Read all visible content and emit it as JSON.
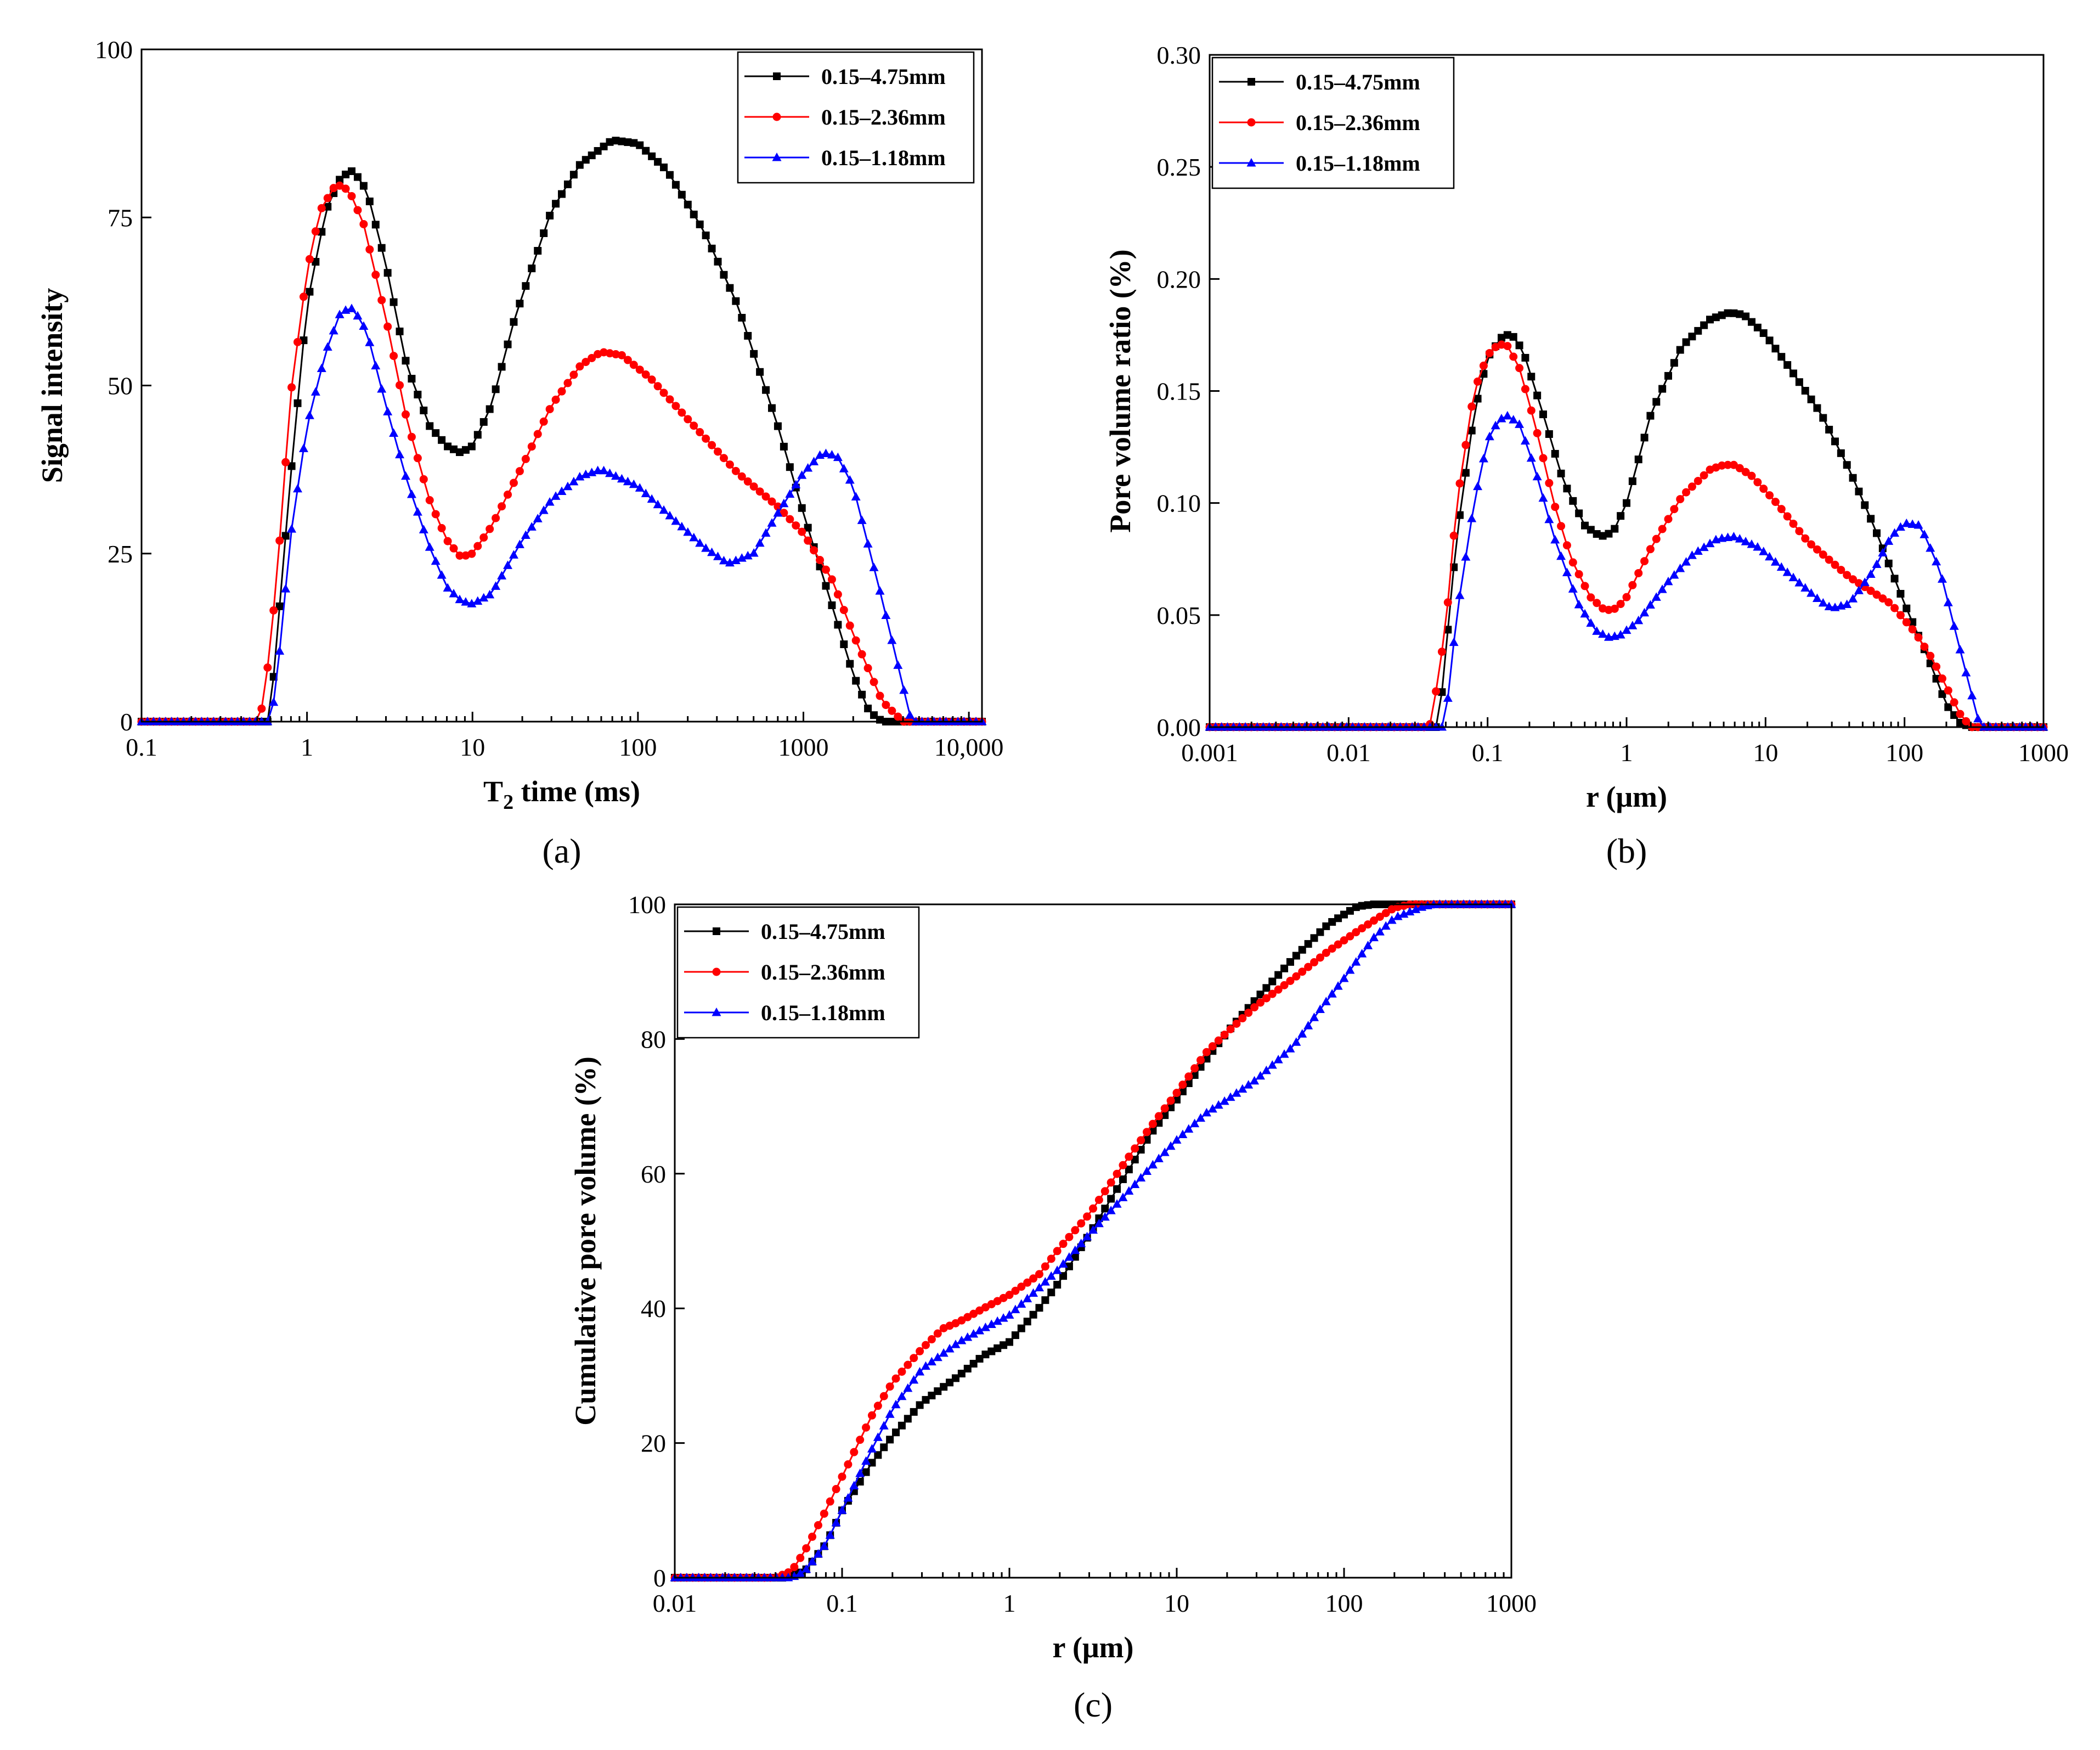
{
  "chart_data": [
    {
      "id": "a",
      "type": "line",
      "panel_label": "(a)",
      "xlabel": "T2 time (ms)",
      "xlabel_main": "T",
      "xlabel_sub": "2",
      "xlabel_rest": " time (ms)",
      "ylabel": "Signal intensity",
      "xscale": "log",
      "xlim": [
        0.1,
        12000
      ],
      "ylim": [
        0,
        100
      ],
      "xticks": [
        0.1,
        1,
        10,
        100,
        1000,
        10000
      ],
      "xtick_labels": [
        "0.1",
        "1",
        "10",
        "100",
        "1000",
        "10,000"
      ],
      "yticks": [
        0,
        25,
        50,
        75,
        100
      ],
      "ytick_labels": [
        "0",
        "25",
        "50",
        "75",
        "100"
      ],
      "legend_position": "top-right",
      "series": [
        {
          "name": "0.15–4.75mm",
          "color": "#000000",
          "marker": "square",
          "x": [
            0.1,
            0.58,
            0.62,
            0.8,
            1.0,
            1.3,
            1.6,
            1.9,
            2.3,
            3,
            4,
            5.5,
            7,
            8.5,
            10,
            13,
            18,
            30,
            45,
            70,
            100,
            150,
            250,
            400,
            700,
            1000,
            1500,
            2000,
            2500,
            3000,
            12000
          ],
          "y": [
            0,
            0,
            5,
            37,
            62,
            76,
            81,
            82,
            79,
            68,
            53,
            44,
            41,
            40,
            41,
            47,
            60,
            76,
            83,
            86.5,
            86,
            82,
            73,
            62,
            44,
            31,
            17,
            7,
            1.5,
            0,
            0
          ]
        },
        {
          "name": "0.15–2.36mm",
          "color": "#ff0000",
          "marker": "circle",
          "x": [
            0.1,
            0.5,
            0.55,
            0.65,
            0.8,
            1.0,
            1.2,
            1.5,
            1.8,
            2.2,
            3,
            4,
            5.5,
            7,
            8.5,
            10,
            13,
            20,
            30,
            45,
            60,
            80,
            120,
            200,
            400,
            700,
            1000,
            1500,
            2000,
            3000,
            4000,
            12000
          ],
          "y": [
            0,
            0,
            3,
            20,
            49,
            67,
            76,
            80,
            79,
            74,
            60,
            45,
            33,
            27,
            24.5,
            25,
            29,
            38,
            47,
            53,
            55,
            54.5,
            51,
            45,
            37,
            32,
            28,
            21,
            13,
            3,
            0,
            0
          ]
        },
        {
          "name": "0.15–1.18mm",
          "color": "#0000ff",
          "marker": "triangle",
          "x": [
            0.1,
            0.6,
            0.65,
            0.8,
            1.0,
            1.3,
            1.6,
            1.9,
            2.3,
            3,
            4,
            5.5,
            7,
            8.5,
            10,
            13,
            20,
            30,
            45,
            60,
            100,
            150,
            250,
            350,
            500,
            700,
            1000,
            1300,
            1600,
            2000,
            3000,
            4500,
            12000
          ],
          "y": [
            0,
            0,
            5,
            28,
            44,
            55,
            61,
            61.5,
            58,
            47,
            36,
            26,
            20,
            18,
            17.5,
            19,
            27,
            33,
            36.5,
            37.5,
            35,
            31,
            26,
            23.5,
            25,
            31,
            37,
            40,
            39.5,
            35,
            18,
            0,
            0
          ]
        }
      ]
    },
    {
      "id": "b",
      "type": "line",
      "panel_label": "(b)",
      "xlabel": "r (μm)",
      "ylabel": "Pore volume ratio (%)",
      "xscale": "log",
      "xlim": [
        0.001,
        1000
      ],
      "ylim": [
        0,
        0.3
      ],
      "xticks": [
        0.001,
        0.01,
        0.1,
        1,
        10,
        100,
        1000
      ],
      "xtick_labels": [
        "0.001",
        "0.01",
        "0.1",
        "1",
        "10",
        "100",
        "1000"
      ],
      "yticks": [
        0,
        0.05,
        0.1,
        0.15,
        0.2,
        0.25,
        0.3
      ],
      "ytick_labels": [
        "0.00",
        "0.05",
        "0.10",
        "0.15",
        "0.20",
        "0.25",
        "0.30"
      ],
      "legend_position": "top-left",
      "series": [
        {
          "name": "0.15–4.75mm",
          "color": "#000000",
          "marker": "square",
          "x": [
            0.001,
            0.043,
            0.046,
            0.06,
            0.08,
            0.1,
            0.13,
            0.15,
            0.18,
            0.25,
            0.35,
            0.5,
            0.65,
            0.8,
            1.0,
            1.5,
            2.5,
            4,
            5.5,
            7,
            10,
            15,
            25,
            40,
            60,
            100,
            150,
            200,
            250,
            300,
            1000
          ],
          "y": [
            0,
            0,
            0.01,
            0.085,
            0.14,
            0.165,
            0.175,
            0.175,
            0.168,
            0.14,
            0.11,
            0.09,
            0.085,
            0.087,
            0.1,
            0.14,
            0.17,
            0.182,
            0.185,
            0.184,
            0.175,
            0.16,
            0.14,
            0.115,
            0.09,
            0.055,
            0.03,
            0.01,
            0.002,
            0,
            0
          ]
        },
        {
          "name": "0.15–2.36mm",
          "color": "#ff0000",
          "marker": "circle",
          "x": [
            0.001,
            0.038,
            0.04,
            0.05,
            0.06,
            0.08,
            0.1,
            0.12,
            0.14,
            0.17,
            0.22,
            0.3,
            0.4,
            0.55,
            0.7,
            0.85,
            1.0,
            1.5,
            2.5,
            4,
            5,
            6,
            8,
            12,
            20,
            40,
            80,
            120,
            160,
            200,
            250,
            300,
            1000
          ],
          "y": [
            0,
            0,
            0.005,
            0.045,
            0.1,
            0.15,
            0.166,
            0.171,
            0.17,
            0.16,
            0.135,
            0.1,
            0.075,
            0.058,
            0.052,
            0.053,
            0.058,
            0.08,
            0.103,
            0.115,
            0.117,
            0.117,
            0.112,
            0.1,
            0.083,
            0.067,
            0.055,
            0.042,
            0.03,
            0.018,
            0.006,
            0,
            0
          ]
        },
        {
          "name": "0.15–1.18mm",
          "color": "#0000ff",
          "marker": "triangle",
          "x": [
            0.001,
            0.048,
            0.05,
            0.06,
            0.08,
            0.1,
            0.12,
            0.14,
            0.17,
            0.22,
            0.3,
            0.45,
            0.6,
            0.75,
            0.9,
            1.2,
            2,
            3,
            4.5,
            6,
            9,
            15,
            25,
            30,
            40,
            60,
            80,
            100,
            130,
            180,
            250,
            350,
            1000
          ],
          "y": [
            0,
            0,
            0.004,
            0.05,
            0.1,
            0.128,
            0.137,
            0.139,
            0.135,
            0.115,
            0.085,
            0.055,
            0.043,
            0.04,
            0.041,
            0.047,
            0.065,
            0.077,
            0.084,
            0.085,
            0.08,
            0.068,
            0.056,
            0.053,
            0.055,
            0.07,
            0.085,
            0.091,
            0.09,
            0.07,
            0.035,
            0,
            0
          ]
        }
      ]
    },
    {
      "id": "c",
      "type": "line",
      "panel_label": "(c)",
      "xlabel": "r (μm)",
      "ylabel": "Cumulative pore volume (%)",
      "xscale": "log",
      "xlim": [
        0.01,
        1000
      ],
      "ylim": [
        0,
        100
      ],
      "xticks": [
        0.01,
        0.1,
        1,
        10,
        100,
        1000
      ],
      "xtick_labels": [
        "0.01",
        "0.1",
        "1",
        "10",
        "100",
        "1000"
      ],
      "yticks": [
        0,
        20,
        40,
        60,
        80,
        100
      ],
      "ytick_labels": [
        "0",
        "20",
        "40",
        "60",
        "80",
        "100"
      ],
      "legend_position": "top-left",
      "series": [
        {
          "name": "0.15–4.75mm",
          "color": "#000000",
          "marker": "square",
          "x": [
            0.01,
            0.045,
            0.06,
            0.08,
            0.1,
            0.15,
            0.2,
            0.3,
            0.5,
            0.7,
            1,
            1.5,
            2,
            3,
            5,
            7,
            10,
            15,
            20,
            30,
            50,
            80,
            120,
            150,
            200,
            1000
          ],
          "y": [
            0,
            0,
            1,
            5,
            10,
            17,
            21,
            26,
            30,
            33,
            35,
            40,
            44,
            51,
            60,
            66,
            71,
            77,
            81,
            86,
            92,
            97,
            99.7,
            100,
            100,
            100
          ]
        },
        {
          "name": "0.15–2.36mm",
          "color": "#ff0000",
          "marker": "circle",
          "x": [
            0.01,
            0.04,
            0.05,
            0.06,
            0.08,
            0.1,
            0.15,
            0.2,
            0.3,
            0.4,
            0.5,
            0.7,
            1,
            1.5,
            2,
            3,
            5,
            7,
            10,
            15,
            20,
            30,
            50,
            80,
            120,
            160,
            200,
            250,
            1000
          ],
          "y": [
            0,
            0,
            1,
            4,
            10,
            15,
            24,
            29,
            34,
            37,
            38,
            40,
            42,
            45,
            49,
            54,
            62,
            67,
            72,
            78,
            81,
            85,
            89,
            93,
            96,
            98,
            99.5,
            100,
            100
          ]
        },
        {
          "name": "0.15–1.18mm",
          "color": "#0000ff",
          "marker": "triangle",
          "x": [
            0.01,
            0.05,
            0.06,
            0.08,
            0.1,
            0.15,
            0.2,
            0.3,
            0.5,
            0.7,
            1,
            1.5,
            2,
            3,
            5,
            7,
            10,
            15,
            20,
            30,
            50,
            70,
            100,
            150,
            200,
            300,
            350,
            1000
          ],
          "y": [
            0,
            0,
            1,
            5,
            10,
            19,
            25,
            31,
            35,
            37,
            39,
            43,
            46,
            51,
            57,
            61,
            65,
            69,
            71,
            74,
            79,
            84,
            89,
            95,
            98,
            99.7,
            100,
            100
          ]
        }
      ]
    }
  ]
}
